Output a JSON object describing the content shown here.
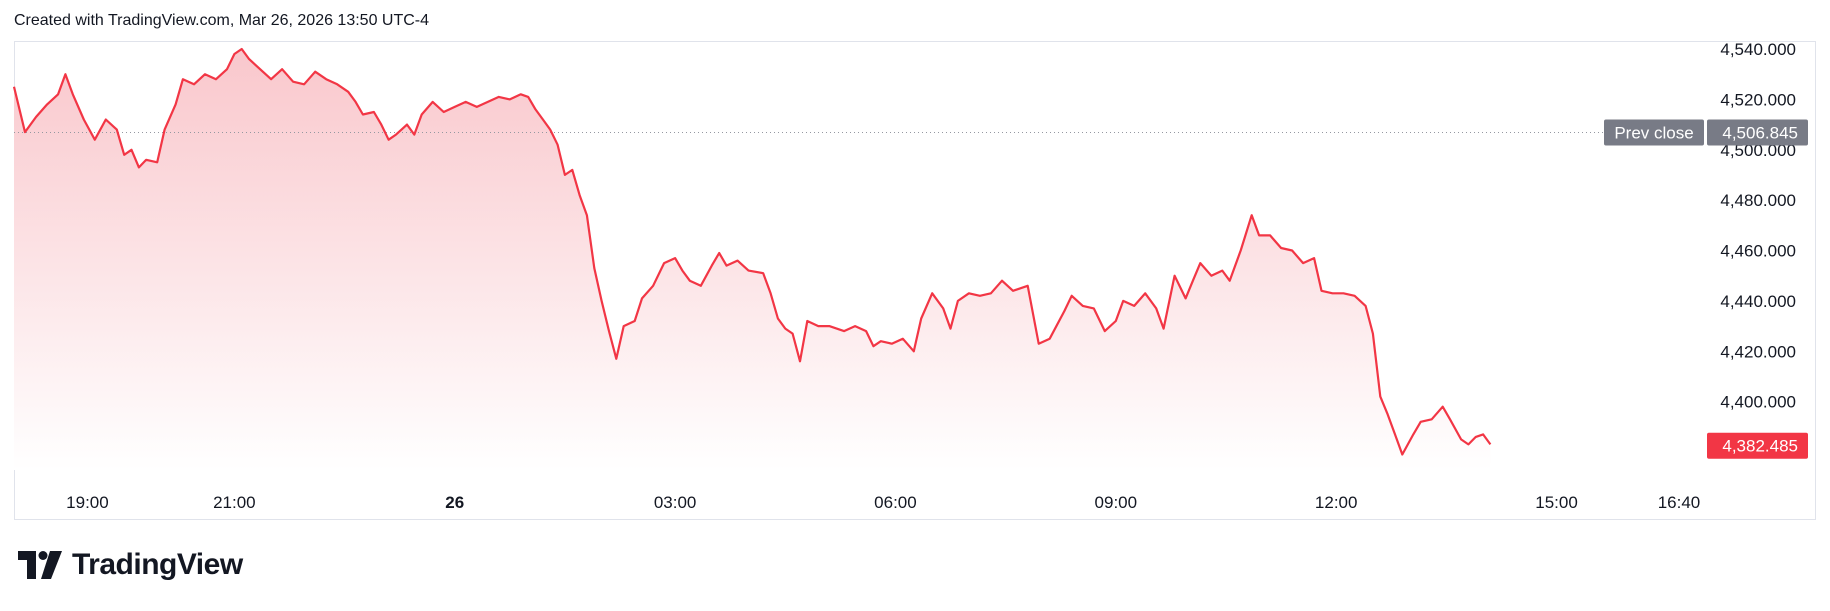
{
  "header": {
    "created_text": "Created with TradingView.com, Mar 26, 2026 13:50 UTC-4"
  },
  "logo": {
    "icon": "tradingview-logo-icon",
    "text": "TradingView"
  },
  "colors": {
    "line": "#f23645",
    "area_top": "#f9c7cc",
    "area_bottom": "#ffffff",
    "prev_close_badge": "#787b86",
    "last_badge": "#f23645"
  },
  "chart_data": {
    "type": "area",
    "y_ticks": [
      "4,540.000",
      "4,520.000",
      "4,500.000",
      "4,480.000",
      "4,460.000",
      "4,440.000",
      "4,420.000",
      "4,400.000"
    ],
    "y_range": [
      4380,
      4540
    ],
    "x_ticks": [
      {
        "label": "19:00",
        "hour": 19,
        "bold": false
      },
      {
        "label": "21:00",
        "hour": 21,
        "bold": false
      },
      {
        "label": "26",
        "hour": 24,
        "bold": true
      },
      {
        "label": "03:00",
        "hour": 27,
        "bold": false
      },
      {
        "label": "06:00",
        "hour": 30,
        "bold": false
      },
      {
        "label": "09:00",
        "hour": 33,
        "bold": false
      },
      {
        "label": "12:00",
        "hour": 36,
        "bold": false
      },
      {
        "label": "15:00",
        "hour": 39,
        "bold": false
      },
      {
        "label": "16:40",
        "hour": 40.667,
        "bold": false
      }
    ],
    "x_range_hours": [
      18.0,
      40.667
    ],
    "prev_close": {
      "label": "Prev close",
      "value": "4,506.845",
      "y": 4506.845
    },
    "last": {
      "value": "4,382.485",
      "y": 4382.485
    },
    "series": [
      {
        "points": [
          [
            18.0,
            4525
          ],
          [
            18.15,
            4507
          ],
          [
            18.3,
            4513
          ],
          [
            18.45,
            4518
          ],
          [
            18.6,
            4522
          ],
          [
            18.7,
            4530
          ],
          [
            18.8,
            4522
          ],
          [
            18.95,
            4512
          ],
          [
            19.1,
            4504
          ],
          [
            19.25,
            4512
          ],
          [
            19.4,
            4508
          ],
          [
            19.5,
            4498
          ],
          [
            19.6,
            4500
          ],
          [
            19.7,
            4493
          ],
          [
            19.8,
            4496
          ],
          [
            19.95,
            4495
          ],
          [
            20.05,
            4508
          ],
          [
            20.2,
            4518
          ],
          [
            20.3,
            4528
          ],
          [
            20.45,
            4526
          ],
          [
            20.6,
            4530
          ],
          [
            20.75,
            4528
          ],
          [
            20.9,
            4532
          ],
          [
            21.0,
            4538
          ],
          [
            21.1,
            4540
          ],
          [
            21.2,
            4536
          ],
          [
            21.35,
            4532
          ],
          [
            21.5,
            4528
          ],
          [
            21.65,
            4532
          ],
          [
            21.8,
            4527
          ],
          [
            21.95,
            4526
          ],
          [
            22.1,
            4531
          ],
          [
            22.25,
            4528
          ],
          [
            22.4,
            4526
          ],
          [
            22.55,
            4523
          ],
          [
            22.65,
            4519
          ],
          [
            22.75,
            4514
          ],
          [
            22.9,
            4515
          ],
          [
            23.0,
            4510
          ],
          [
            23.1,
            4504
          ],
          [
            23.2,
            4506
          ],
          [
            23.35,
            4510
          ],
          [
            23.45,
            4506
          ],
          [
            23.55,
            4514
          ],
          [
            23.7,
            4519
          ],
          [
            23.85,
            4515
          ],
          [
            24.0,
            4517
          ],
          [
            24.15,
            4519
          ],
          [
            24.3,
            4517
          ],
          [
            24.45,
            4519
          ],
          [
            24.6,
            4521
          ],
          [
            24.75,
            4520
          ],
          [
            24.9,
            4522
          ],
          [
            25.0,
            4521
          ],
          [
            25.1,
            4516
          ],
          [
            25.2,
            4512
          ],
          [
            25.3,
            4508
          ],
          [
            25.4,
            4502
          ],
          [
            25.5,
            4490
          ],
          [
            25.6,
            4492
          ],
          [
            25.7,
            4482
          ],
          [
            25.8,
            4474
          ],
          [
            25.9,
            4453
          ],
          [
            26.0,
            4440
          ],
          [
            26.1,
            4428
          ],
          [
            26.2,
            4417
          ],
          [
            26.3,
            4430
          ],
          [
            26.45,
            4432
          ],
          [
            26.55,
            4441
          ],
          [
            26.7,
            4446
          ],
          [
            26.85,
            4455
          ],
          [
            27.0,
            4457
          ],
          [
            27.1,
            4452
          ],
          [
            27.2,
            4448
          ],
          [
            27.35,
            4446
          ],
          [
            27.5,
            4454
          ],
          [
            27.6,
            4459
          ],
          [
            27.7,
            4454
          ],
          [
            27.85,
            4456
          ],
          [
            28.0,
            4452
          ],
          [
            28.2,
            4451
          ],
          [
            28.3,
            4443
          ],
          [
            28.4,
            4433
          ],
          [
            28.5,
            4429
          ],
          [
            28.6,
            4427
          ],
          [
            28.7,
            4416
          ],
          [
            28.8,
            4432
          ],
          [
            28.95,
            4430
          ],
          [
            29.1,
            4430
          ],
          [
            29.3,
            4428
          ],
          [
            29.45,
            4430
          ],
          [
            29.6,
            4428
          ],
          [
            29.7,
            4422
          ],
          [
            29.8,
            4424
          ],
          [
            29.95,
            4423
          ],
          [
            30.1,
            4425
          ],
          [
            30.25,
            4420
          ],
          [
            30.35,
            4433
          ],
          [
            30.5,
            4443
          ],
          [
            30.65,
            4437
          ],
          [
            30.75,
            4429
          ],
          [
            30.85,
            4440
          ],
          [
            31.0,
            4443
          ],
          [
            31.15,
            4442
          ],
          [
            31.3,
            4443
          ],
          [
            31.45,
            4448
          ],
          [
            31.6,
            4444
          ],
          [
            31.8,
            4446
          ],
          [
            31.95,
            4423
          ],
          [
            32.1,
            4425
          ],
          [
            32.3,
            4436
          ],
          [
            32.4,
            4442
          ],
          [
            32.55,
            4438
          ],
          [
            32.7,
            4437
          ],
          [
            32.85,
            4428
          ],
          [
            33.0,
            4432
          ],
          [
            33.1,
            4440
          ],
          [
            33.25,
            4438
          ],
          [
            33.4,
            4443
          ],
          [
            33.55,
            4437
          ],
          [
            33.65,
            4429
          ],
          [
            33.8,
            4450
          ],
          [
            33.95,
            4441
          ],
          [
            34.05,
            4448
          ],
          [
            34.15,
            4455
          ],
          [
            34.3,
            4450
          ],
          [
            34.45,
            4452
          ],
          [
            34.55,
            4448
          ],
          [
            34.7,
            4460
          ],
          [
            34.85,
            4474
          ],
          [
            34.95,
            4466
          ],
          [
            35.1,
            4466
          ],
          [
            35.25,
            4461
          ],
          [
            35.4,
            4460
          ],
          [
            35.55,
            4455
          ],
          [
            35.7,
            4457
          ],
          [
            35.8,
            4444
          ],
          [
            35.95,
            4443
          ],
          [
            36.1,
            4443
          ],
          [
            36.25,
            4442
          ],
          [
            36.4,
            4438
          ],
          [
            36.5,
            4427
          ],
          [
            36.6,
            4402
          ],
          [
            36.7,
            4395
          ],
          [
            36.8,
            4387
          ],
          [
            36.9,
            4379
          ],
          [
            37.05,
            4387
          ],
          [
            37.15,
            4392
          ],
          [
            37.3,
            4393
          ],
          [
            37.45,
            4398
          ],
          [
            37.55,
            4393
          ],
          [
            37.7,
            4385
          ],
          [
            37.8,
            4383
          ],
          [
            37.9,
            4386
          ],
          [
            38.0,
            4387
          ],
          [
            38.1,
            4383
          ]
        ]
      }
    ]
  }
}
